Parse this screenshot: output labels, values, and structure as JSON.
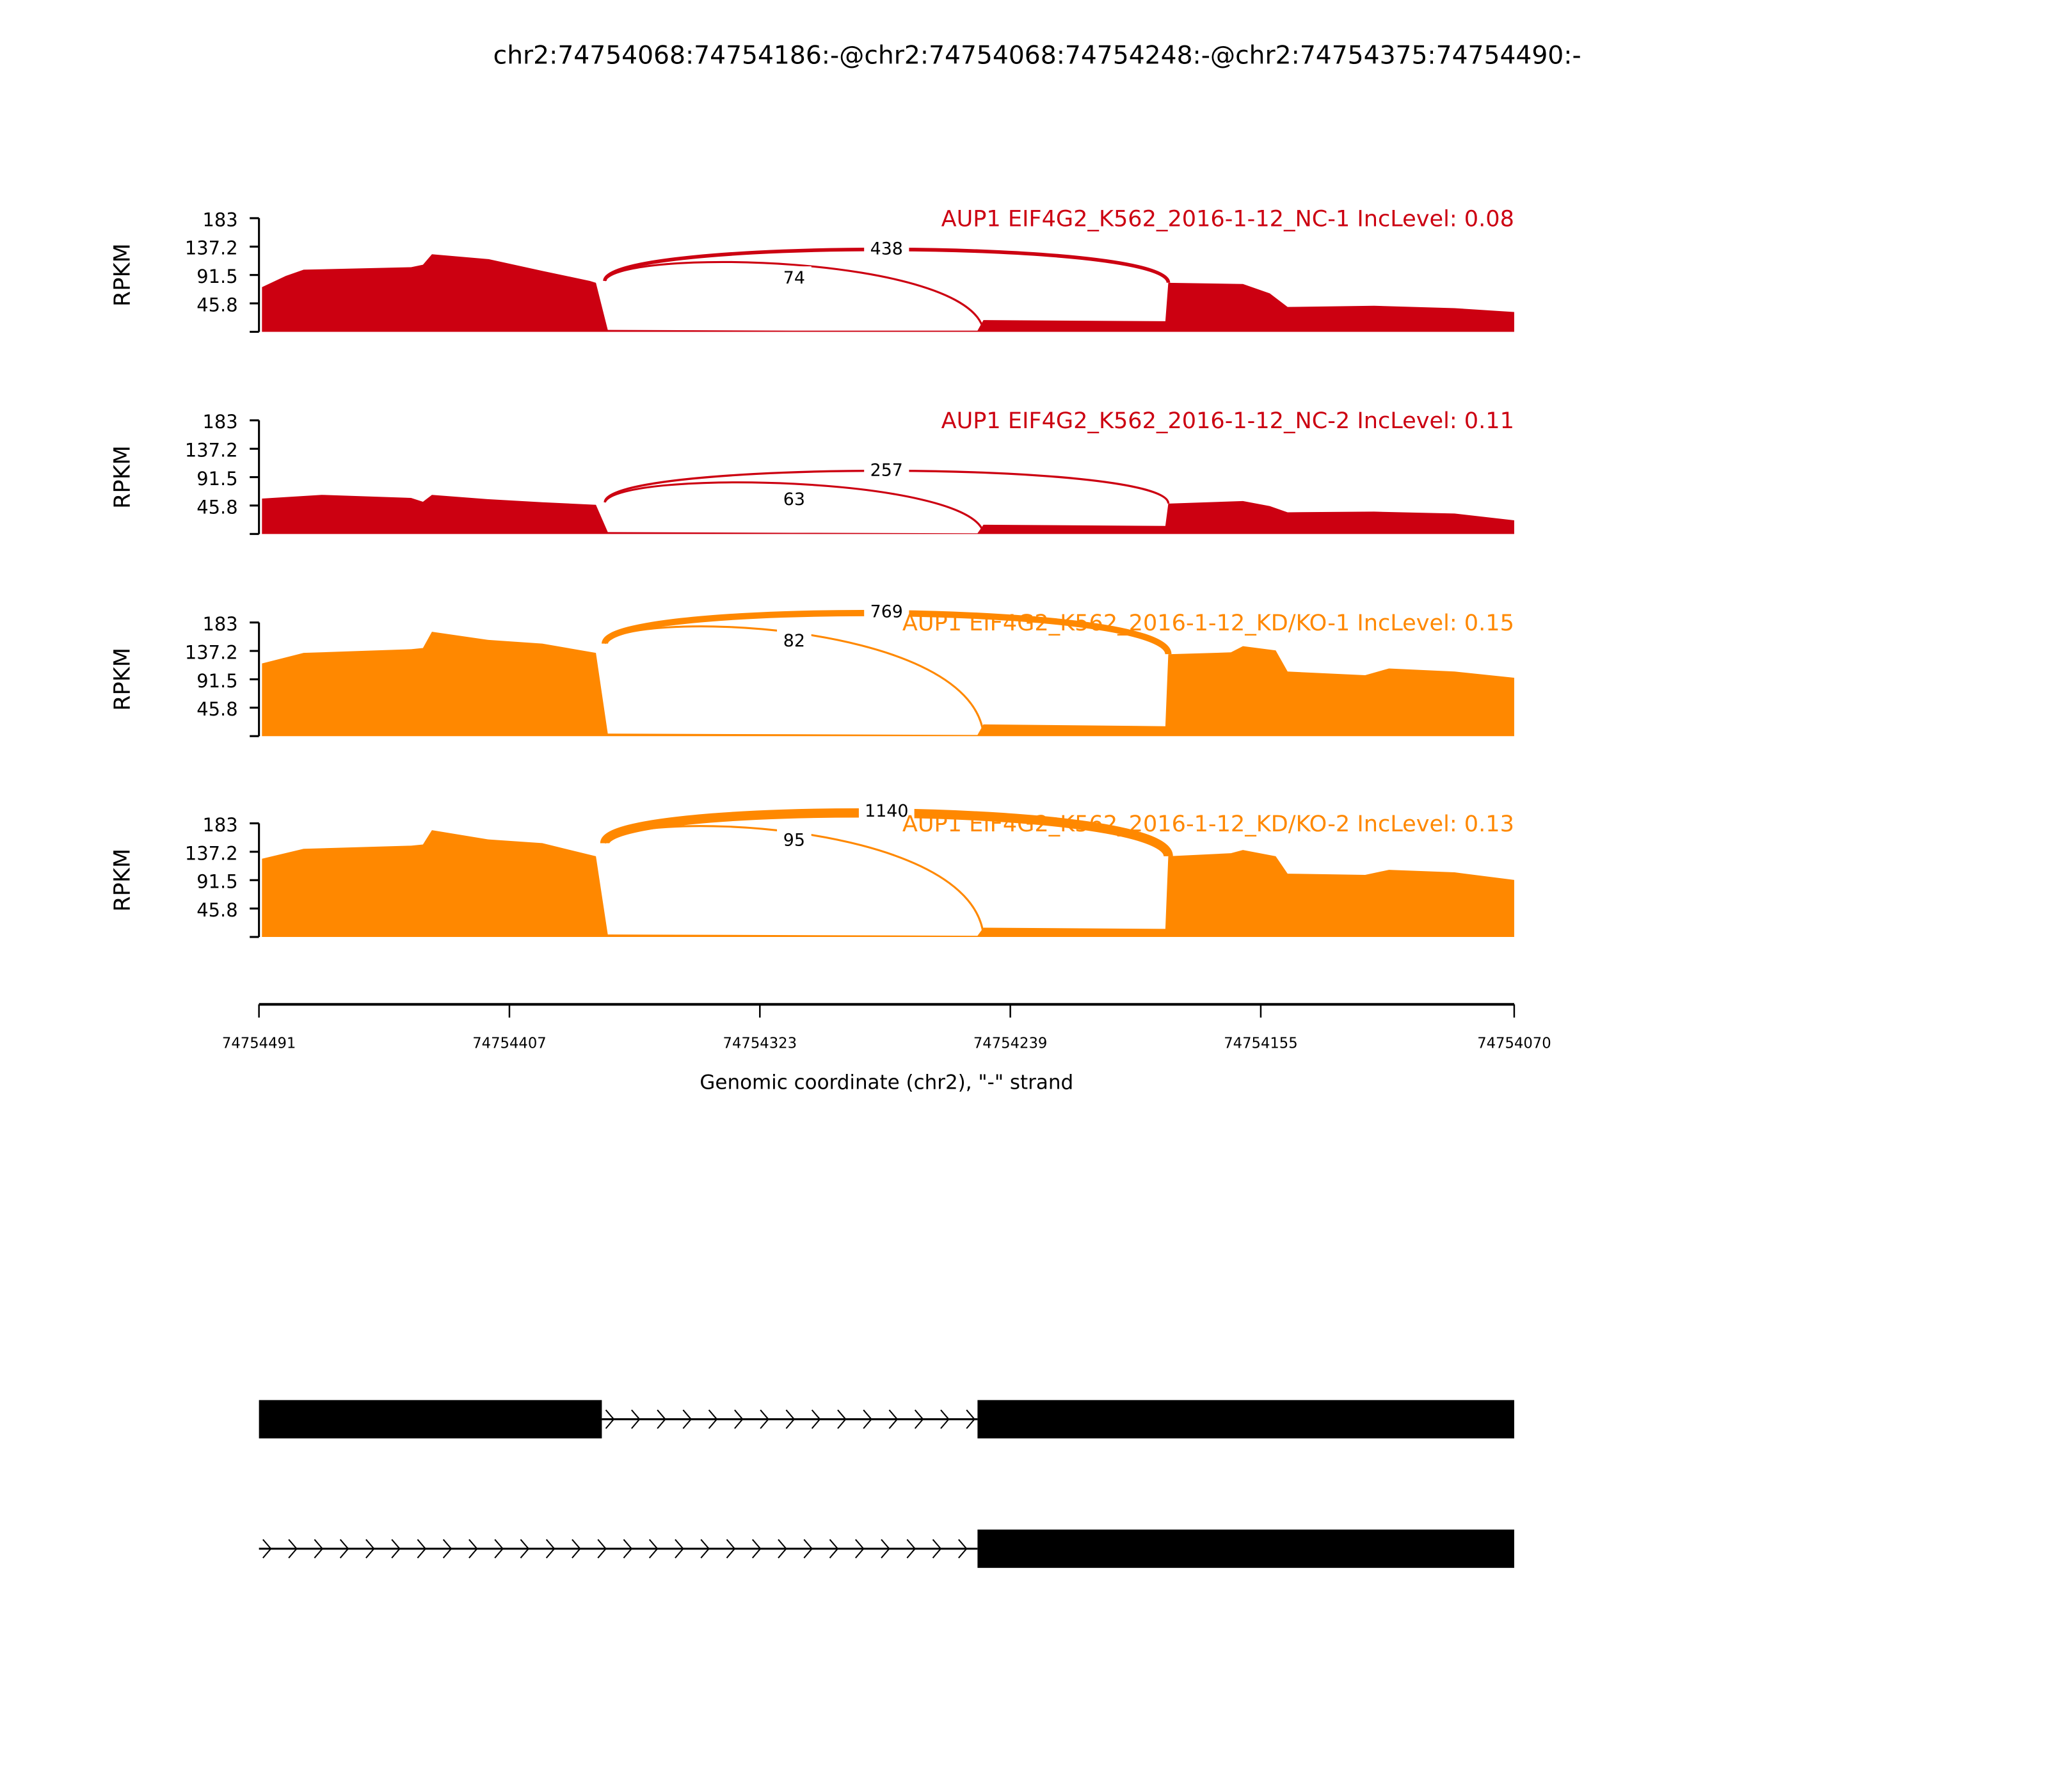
{
  "chart_data": {
    "type": "area",
    "title": "chr2:74754068:74754186:-@chr2:74754068:74754248:-@chr2:74754375:74754490:-",
    "xlabel": "Genomic coordinate (chr2), \"-\" strand",
    "xlim": [
      74754491,
      74754070
    ],
    "x_reversed": true,
    "xticks": [
      "74754491",
      "74754407",
      "74754323",
      "74754239",
      "74754155",
      "74754070"
    ],
    "ylabel": "RPKM",
    "ylim": [
      0,
      183
    ],
    "yticks": [
      "183",
      "137.2",
      "91.5",
      "45.8"
    ],
    "grid": false,
    "tracks": [
      {
        "label": "AUP1 EIF4G2_K562_2016-1-12_NC-1 IncLevel: 0.08",
        "color": "#cc0011",
        "coverage": [
          [
            74754490,
            72
          ],
          [
            74754482,
            90
          ],
          [
            74754476,
            100
          ],
          [
            74754440,
            104
          ],
          [
            74754436,
            108
          ],
          [
            74754433,
            125
          ],
          [
            74754414,
            117
          ],
          [
            74754396,
            98
          ],
          [
            74754380,
            82
          ],
          [
            74754378,
            79
          ],
          [
            74754374,
            3
          ],
          [
            74754312,
            2
          ],
          [
            74754250,
            2
          ],
          [
            74754248,
            19
          ],
          [
            74754187,
            17
          ],
          [
            74754186,
            79
          ],
          [
            74754161,
            77
          ],
          [
            74754152,
            62
          ],
          [
            74754146,
            40
          ],
          [
            74754117,
            42
          ],
          [
            74754090,
            38
          ],
          [
            74754070,
            32
          ]
        ],
        "junctions": [
          {
            "start": 74754375,
            "end": 74754186,
            "count": "438"
          },
          {
            "start": 74754375,
            "end": 74754248,
            "count": "74"
          }
        ]
      },
      {
        "label": "AUP1 EIF4G2_K562_2016-1-12_NC-2 IncLevel: 0.11",
        "color": "#cc0011",
        "coverage": [
          [
            74754490,
            57
          ],
          [
            74754470,
            63
          ],
          [
            74754440,
            58
          ],
          [
            74754436,
            52
          ],
          [
            74754433,
            63
          ],
          [
            74754414,
            56
          ],
          [
            74754396,
            51
          ],
          [
            74754378,
            47
          ],
          [
            74754374,
            3
          ],
          [
            74754312,
            2
          ],
          [
            74754250,
            1
          ],
          [
            74754248,
            15
          ],
          [
            74754187,
            13
          ],
          [
            74754186,
            49
          ],
          [
            74754161,
            53
          ],
          [
            74754152,
            45
          ],
          [
            74754146,
            35
          ],
          [
            74754117,
            36
          ],
          [
            74754090,
            33
          ],
          [
            74754070,
            22
          ]
        ],
        "junctions": [
          {
            "start": 74754375,
            "end": 74754186,
            "count": "257"
          },
          {
            "start": 74754375,
            "end": 74754248,
            "count": "63"
          }
        ]
      },
      {
        "label": "AUP1 EIF4G2_K562_2016-1-12_KD/KO-1 IncLevel: 0.15",
        "color": "#ff8800",
        "coverage": [
          [
            74754490,
            117
          ],
          [
            74754476,
            134
          ],
          [
            74754440,
            140
          ],
          [
            74754436,
            142
          ],
          [
            74754433,
            168
          ],
          [
            74754414,
            155
          ],
          [
            74754396,
            149
          ],
          [
            74754378,
            134
          ],
          [
            74754374,
            4
          ],
          [
            74754312,
            3
          ],
          [
            74754250,
            2
          ],
          [
            74754248,
            19
          ],
          [
            74754187,
            16
          ],
          [
            74754186,
            132
          ],
          [
            74754165,
            135
          ],
          [
            74754161,
            145
          ],
          [
            74754150,
            138
          ],
          [
            74754146,
            104
          ],
          [
            74754120,
            98
          ],
          [
            74754112,
            109
          ],
          [
            74754090,
            104
          ],
          [
            74754070,
            94
          ]
        ],
        "junctions": [
          {
            "start": 74754375,
            "end": 74754186,
            "count": "769"
          },
          {
            "start": 74754375,
            "end": 74754248,
            "count": "82"
          }
        ]
      },
      {
        "label": "AUP1 EIF4G2_K562_2016-1-12_KD/KO-2 IncLevel: 0.13",
        "color": "#ff8800",
        "coverage": [
          [
            74754490,
            126
          ],
          [
            74754476,
            142
          ],
          [
            74754440,
            147
          ],
          [
            74754436,
            149
          ],
          [
            74754433,
            172
          ],
          [
            74754414,
            157
          ],
          [
            74754396,
            151
          ],
          [
            74754378,
            130
          ],
          [
            74754374,
            4
          ],
          [
            74754312,
            3
          ],
          [
            74754250,
            2
          ],
          [
            74754248,
            15
          ],
          [
            74754187,
            13
          ],
          [
            74754186,
            130
          ],
          [
            74754165,
            135
          ],
          [
            74754161,
            140
          ],
          [
            74754150,
            130
          ],
          [
            74754146,
            102
          ],
          [
            74754120,
            100
          ],
          [
            74754112,
            108
          ],
          [
            74754090,
            104
          ],
          [
            74754070,
            92
          ]
        ],
        "junctions": [
          {
            "start": 74754375,
            "end": 74754186,
            "count": "1140"
          },
          {
            "start": 74754375,
            "end": 74754248,
            "count": "95"
          }
        ]
      }
    ],
    "gene_models": [
      {
        "exons": [
          [
            74754491,
            74754376
          ],
          [
            74754250,
            74754070
          ]
        ]
      },
      {
        "exons": [
          [
            74754250,
            74754070
          ]
        ],
        "intron_from": 74754491
      }
    ]
  }
}
